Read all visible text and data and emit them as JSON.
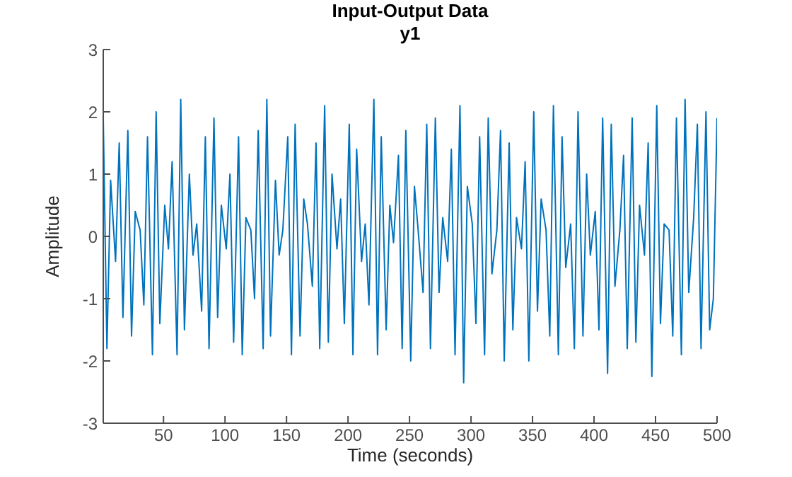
{
  "chart_data": {
    "type": "line",
    "title": "Input-Output Data",
    "subtitle": "y1",
    "xlabel": "Time (seconds)",
    "ylabel": "Amplitude",
    "x": [
      1,
      4,
      7,
      11,
      14,
      17,
      21,
      24,
      27,
      31,
      34,
      37,
      41,
      44,
      47,
      51,
      54,
      57,
      61,
      64,
      67,
      71,
      74,
      77,
      81,
      84,
      87,
      91,
      94,
      97,
      101,
      104,
      107,
      111,
      114,
      117,
      121,
      124,
      127,
      131,
      134,
      137,
      141,
      144,
      147,
      151,
      154,
      157,
      161,
      164,
      167,
      171,
      174,
      177,
      181,
      184,
      187,
      191,
      194,
      197,
      201,
      204,
      207,
      211,
      214,
      217,
      221,
      224,
      227,
      231,
      234,
      237,
      241,
      244,
      247,
      251,
      254,
      257,
      261,
      264,
      267,
      271,
      274,
      277,
      281,
      284,
      287,
      291,
      294,
      297,
      301,
      304,
      307,
      311,
      314,
      317,
      321,
      324,
      327,
      331,
      334,
      337,
      341,
      344,
      347,
      351,
      354,
      357,
      361,
      364,
      367,
      371,
      374,
      377,
      381,
      384,
      387,
      391,
      394,
      397,
      401,
      404,
      407,
      411,
      414,
      417,
      421,
      424,
      427,
      431,
      434,
      437,
      441,
      444,
      447,
      451,
      454,
      457,
      461,
      464,
      467,
      471,
      474,
      477,
      481,
      484,
      487,
      491,
      494,
      497,
      500
    ],
    "series": [
      {
        "color": "#0072bd",
        "values": [
          1.9,
          -1.8,
          0.9,
          -0.4,
          1.5,
          -1.3,
          1.7,
          -1.6,
          0.4,
          0.1,
          -1.1,
          1.6,
          -1.9,
          2.0,
          -1.4,
          0.5,
          -0.2,
          1.2,
          -1.9,
          2.2,
          -1.5,
          1.0,
          -0.3,
          0.2,
          -1.2,
          1.6,
          -1.8,
          1.9,
          -1.3,
          0.5,
          -0.2,
          1.0,
          -1.7,
          1.6,
          -1.9,
          0.3,
          0.1,
          -1.0,
          1.7,
          -1.8,
          2.2,
          -1.6,
          0.9,
          -0.3,
          0.1,
          1.6,
          -1.9,
          1.8,
          -1.6,
          0.6,
          0.2,
          -0.8,
          1.5,
          -1.8,
          2.1,
          -1.7,
          1.0,
          -0.2,
          0.6,
          -1.4,
          1.8,
          -1.9,
          1.4,
          -0.4,
          0.2,
          -1.1,
          2.2,
          -1.9,
          1.6,
          -1.5,
          0.5,
          -0.1,
          1.3,
          -1.8,
          1.7,
          -2.0,
          0.8,
          0.1,
          -0.9,
          1.8,
          -1.8,
          1.9,
          -0.9,
          0.3,
          -0.4,
          1.4,
          -1.9,
          2.1,
          -2.35,
          0.8,
          0.2,
          -1.4,
          1.6,
          -1.9,
          1.9,
          -0.6,
          0.1,
          1.7,
          -2.0,
          1.5,
          -1.5,
          0.3,
          -0.2,
          1.2,
          -2.0,
          2.0,
          -1.2,
          0.6,
          0.1,
          -1.6,
          2.1,
          -1.9,
          1.6,
          -0.5,
          0.2,
          -1.8,
          2.0,
          -1.6,
          1.0,
          -0.3,
          0.4,
          -1.5,
          1.9,
          -2.2,
          1.8,
          -0.8,
          0.1,
          1.3,
          -1.8,
          1.9,
          -1.7,
          0.5,
          -0.3,
          1.5,
          -2.25,
          2.1,
          -1.4,
          0.2,
          0.1,
          -1.6,
          1.9,
          -1.9,
          2.2,
          -0.9,
          0.3,
          1.8,
          -1.8,
          2.0,
          -1.5,
          -1.0,
          1.9
        ]
      }
    ],
    "xlim": [
      1,
      500
    ],
    "xticks": [
      50,
      100,
      150,
      200,
      250,
      300,
      350,
      400,
      450,
      500
    ],
    "ylim": [
      -3,
      3
    ],
    "yticks": [
      -3,
      -2,
      -1,
      0,
      1,
      2,
      3
    ],
    "grid": false,
    "legend": false,
    "marker": "none",
    "line_style": "solid"
  }
}
